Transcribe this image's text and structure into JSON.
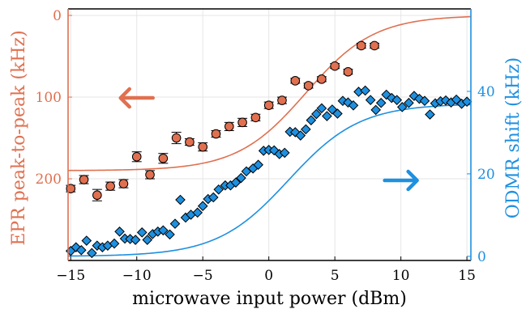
{
  "chart_data": {
    "type": "scatter",
    "title": "",
    "xlabel": "microwave input power (dBm)",
    "ylabel_left": "EPR peak-to-peak (kHz)",
    "ylabel_right": "ODMR shift (kHz)",
    "xlim": [
      -15.2,
      15.3
    ],
    "ylim_left": [
      300,
      -8
    ],
    "ylim_right": [
      -1,
      60
    ],
    "xticks": [
      "−15",
      "−10",
      "−5",
      "0",
      "5",
      "10",
      "15"
    ],
    "xtick_values": [
      -15,
      -10,
      -5,
      0,
      5,
      10,
      15
    ],
    "yticks_left": [
      "0",
      "100",
      "200"
    ],
    "ytick_values_left": [
      0,
      100,
      200
    ],
    "yticks_right": [
      "0",
      "20",
      "40"
    ],
    "ytick_values_right": [
      0,
      20,
      40
    ],
    "grid": true,
    "colors": {
      "epr": "#e07050",
      "odmr": "#1e90e0",
      "axis": "#000000"
    },
    "series": [
      {
        "name": "",
        "axis": "left",
        "marker": "circle",
        "points": [
          [
            -15,
            212,
            4
          ],
          [
            -14,
            201,
            5
          ],
          [
            -13,
            220,
            7
          ],
          [
            -12,
            209,
            5
          ],
          [
            -11,
            206,
            5
          ],
          [
            -10,
            173,
            6
          ],
          [
            -9,
            195,
            5
          ],
          [
            -8,
            175,
            6
          ],
          [
            -7,
            150,
            7
          ],
          [
            -6,
            155,
            4
          ],
          [
            -5,
            161,
            5
          ],
          [
            -4,
            145,
            4
          ],
          [
            -3,
            136,
            5
          ],
          [
            -2,
            131,
            5
          ],
          [
            -1,
            125,
            4
          ],
          [
            0,
            110,
            4
          ],
          [
            1,
            104,
            4
          ],
          [
            2,
            80,
            3
          ],
          [
            3,
            86,
            3
          ],
          [
            4,
            78,
            3
          ],
          [
            5,
            62,
            3
          ],
          [
            6,
            69,
            3
          ],
          [
            7,
            37,
            3
          ],
          [
            8,
            37,
            3
          ]
        ]
      },
      {
        "name": "",
        "axis": "right",
        "marker": "diamond",
        "points": [
          [
            -15,
            1.3
          ],
          [
            -14.6,
            2.2
          ],
          [
            -14.2,
            1.5
          ],
          [
            -13.8,
            3.8
          ],
          [
            -13.4,
            0.8
          ],
          [
            -13,
            2.6
          ],
          [
            -12.6,
            2.2
          ],
          [
            -12.2,
            2.6
          ],
          [
            -11.7,
            3.1
          ],
          [
            -11.3,
            6.0
          ],
          [
            -10.9,
            4.3
          ],
          [
            -10.5,
            4.2
          ],
          [
            -10.1,
            4.0
          ],
          [
            -9.6,
            5.8
          ],
          [
            -9.2,
            4.0
          ],
          [
            -8.8,
            5.4
          ],
          [
            -8.4,
            6.0
          ],
          [
            -8,
            6.3
          ],
          [
            -7.5,
            5.3
          ],
          [
            -7.1,
            7.9
          ],
          [
            -6.7,
            13.7
          ],
          [
            -6.3,
            9.4
          ],
          [
            -5.9,
            10.1
          ],
          [
            -5.4,
            10.6
          ],
          [
            -5,
            12.2
          ],
          [
            -4.6,
            13.9
          ],
          [
            -4.2,
            14.3
          ],
          [
            -3.8,
            16.2
          ],
          [
            -3.3,
            17.2
          ],
          [
            -2.9,
            17.2
          ],
          [
            -2.5,
            17.9
          ],
          [
            -2.1,
            19.0
          ],
          [
            -1.7,
            20.6
          ],
          [
            -1.2,
            21.3
          ],
          [
            -0.8,
            22.2
          ],
          [
            -0.4,
            25.6
          ],
          [
            0,
            25.8
          ],
          [
            0.4,
            25.7
          ],
          [
            0.8,
            24.8
          ],
          [
            1.2,
            25.1
          ],
          [
            1.6,
            30.2
          ],
          [
            2,
            30.1
          ],
          [
            2.4,
            29.3
          ],
          [
            2.8,
            30.8
          ],
          [
            3.2,
            33.0
          ],
          [
            3.6,
            34.5
          ],
          [
            4,
            35.9
          ],
          [
            4.4,
            34.0
          ],
          [
            4.8,
            35.6
          ],
          [
            5.2,
            34.6
          ],
          [
            5.6,
            37.7
          ],
          [
            6,
            37.3
          ],
          [
            6.4,
            36.6
          ],
          [
            6.8,
            39.9
          ],
          [
            7.3,
            40.2
          ],
          [
            7.7,
            37.9
          ],
          [
            8.1,
            35.5
          ],
          [
            8.5,
            37.2
          ],
          [
            8.9,
            39.2
          ],
          [
            9.3,
            38.4
          ],
          [
            9.7,
            37.9
          ],
          [
            10.1,
            36.2
          ],
          [
            10.6,
            37.2
          ],
          [
            11,
            38.9
          ],
          [
            11.4,
            38.2
          ],
          [
            11.8,
            37.7
          ],
          [
            12.2,
            34.4
          ],
          [
            12.6,
            37.1
          ],
          [
            13,
            37.6
          ],
          [
            13.4,
            37.8
          ],
          [
            13.8,
            37.3
          ],
          [
            14.2,
            38.0
          ],
          [
            14.6,
            37.0
          ],
          [
            15,
            37.5
          ]
        ]
      }
    ],
    "fits": [
      {
        "axis": "left",
        "model": "y = 190 - 190 / (1 + exp(-(x - 2.8) / 2.6))",
        "base": 190,
        "amp": 190,
        "center": 2.8,
        "width": 2.6
      },
      {
        "axis": "right",
        "model": "y = 37 / (1 + exp(-(x - 1.5) / 2.7))",
        "amp": 37,
        "center": 1.5,
        "width": 2.7
      }
    ],
    "annotations": [
      {
        "type": "arrow",
        "direction": "left",
        "color": "epr",
        "x": -10,
        "y_axis": "left",
        "y": 101
      },
      {
        "type": "arrow",
        "direction": "right",
        "color": "odmr",
        "x": 10,
        "y_axis": "left",
        "y": 202
      }
    ]
  }
}
